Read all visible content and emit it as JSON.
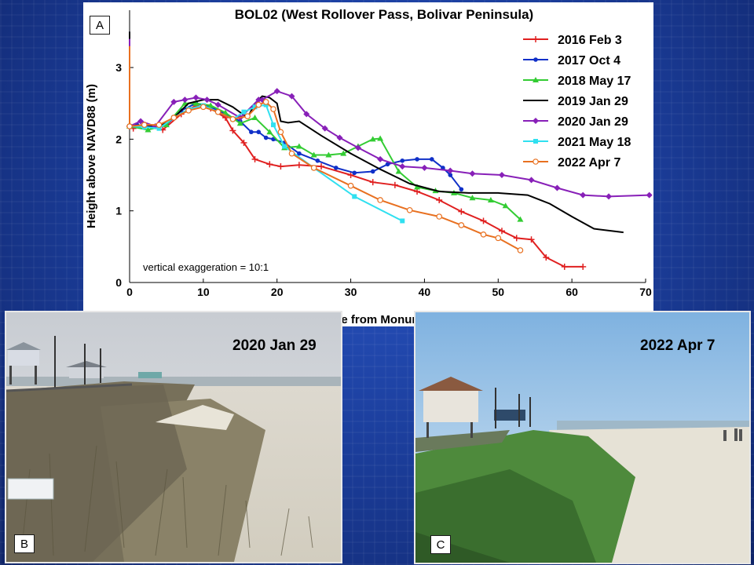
{
  "chart_data": {
    "type": "line",
    "title": "BOL02 (West Rollover Pass, Bolivar Peninsula)",
    "xlabel": "Distance from Monument (m)",
    "ylabel": "Height above NAVD88 (m)",
    "xlim": [
      0,
      70
    ],
    "ylim": [
      0,
      3.8
    ],
    "xticks": [
      0,
      10,
      20,
      30,
      40,
      50,
      60,
      70
    ],
    "yticks": [
      0,
      1,
      2,
      3
    ],
    "grid": false,
    "legend_position": "top-right",
    "annotation": "vertical exaggeration = 10:1",
    "series": [
      {
        "name": "2016 Feb 3",
        "color": "#e02020",
        "marker": "plus",
        "x": [
          0,
          0,
          0.5,
          2,
          4.5,
          7,
          9,
          11,
          13,
          14,
          15.5,
          17,
          19,
          20.5,
          23,
          26,
          30,
          33,
          36,
          39,
          42,
          45,
          48,
          50.5,
          52.5,
          54.5,
          56.5,
          59,
          61.5
        ],
        "y": [
          3.45,
          2.18,
          2.15,
          2.2,
          2.13,
          2.35,
          2.47,
          2.43,
          2.3,
          2.12,
          1.95,
          1.72,
          1.65,
          1.62,
          1.64,
          1.62,
          1.5,
          1.4,
          1.36,
          1.27,
          1.15,
          0.99,
          0.86,
          0.72,
          0.62,
          0.6,
          0.35,
          0.22,
          0.22
        ]
      },
      {
        "name": "2017 Oct 4",
        "color": "#1030c8",
        "marker": "circle",
        "x": [
          0,
          0,
          1,
          3,
          5,
          7,
          9,
          11,
          13,
          15,
          16.5,
          17.5,
          18.5,
          19.5,
          21,
          23,
          25.5,
          28,
          30.5,
          33,
          35,
          37,
          39,
          41,
          42.5,
          43.5,
          45
        ],
        "y": [
          3.5,
          2.18,
          2.2,
          2.17,
          2.2,
          2.4,
          2.5,
          2.45,
          2.35,
          2.25,
          2.1,
          2.1,
          2.02,
          2.0,
          1.95,
          1.8,
          1.7,
          1.6,
          1.53,
          1.55,
          1.65,
          1.7,
          1.72,
          1.72,
          1.6,
          1.5,
          1.3
        ]
      },
      {
        "name": "2018 May 17",
        "color": "#33cc33",
        "marker": "triangle",
        "x": [
          0,
          0,
          2.5,
          5,
          7.5,
          9,
          11,
          13,
          15,
          17,
          19,
          21,
          23,
          25,
          27,
          29,
          31,
          33,
          34,
          36.5,
          39,
          41.5,
          44,
          46.5,
          49,
          51,
          53
        ],
        "y": [
          3.3,
          2.18,
          2.13,
          2.2,
          2.5,
          2.5,
          2.47,
          2.37,
          2.22,
          2.3,
          2.1,
          1.88,
          1.9,
          1.78,
          1.78,
          1.8,
          1.9,
          2.0,
          2.01,
          1.55,
          1.33,
          1.28,
          1.25,
          1.18,
          1.15,
          1.07,
          0.88
        ]
      },
      {
        "name": "2019 Jan 29",
        "color": "#000000",
        "marker": "none",
        "x": [
          0,
          0,
          2,
          4,
          6,
          8,
          10,
          12,
          14,
          16,
          17,
          18,
          19,
          20,
          20.5,
          21.5,
          23,
          26,
          30,
          34,
          38,
          42,
          46,
          50,
          54,
          57,
          60,
          63,
          67
        ],
        "y": [
          3.5,
          2.18,
          2.2,
          2.18,
          2.3,
          2.5,
          2.55,
          2.55,
          2.45,
          2.3,
          2.5,
          2.6,
          2.58,
          2.5,
          2.25,
          2.23,
          2.25,
          2.05,
          1.8,
          1.58,
          1.38,
          1.27,
          1.25,
          1.25,
          1.22,
          1.1,
          0.92,
          0.75,
          0.7
        ]
      },
      {
        "name": "2020 Jan 29",
        "color": "#8820b8",
        "marker": "diamond",
        "x": [
          0,
          0,
          1.5,
          3.5,
          6,
          7.5,
          9,
          10.5,
          12,
          15,
          17.5,
          18,
          20,
          22,
          24,
          26.5,
          28.5,
          31,
          34,
          37,
          40,
          43.5,
          46.5,
          50.5,
          54.5,
          58,
          61.5,
          65,
          70.5
        ],
        "y": [
          3.4,
          2.18,
          2.25,
          2.18,
          2.52,
          2.55,
          2.58,
          2.55,
          2.48,
          2.3,
          2.55,
          2.55,
          2.67,
          2.6,
          2.35,
          2.15,
          2.02,
          1.88,
          1.72,
          1.62,
          1.6,
          1.56,
          1.52,
          1.5,
          1.43,
          1.32,
          1.22,
          1.2,
          1.22
        ]
      },
      {
        "name": "2021 May 18",
        "color": "#30e0f0",
        "marker": "square",
        "x": [
          0,
          0,
          2,
          4,
          6,
          8,
          10,
          12,
          14,
          15.5,
          17,
          18.5,
          19.5,
          21,
          25,
          30.5,
          37
        ],
        "y": [
          3.2,
          2.18,
          2.17,
          2.15,
          2.3,
          2.42,
          2.47,
          2.38,
          2.28,
          2.38,
          2.45,
          2.48,
          2.2,
          1.9,
          1.6,
          1.2,
          0.86
        ]
      },
      {
        "name": "2022 Apr 7",
        "color": "#e87020",
        "marker": "open-circle",
        "x": [
          0,
          0,
          2,
          4,
          6,
          8,
          10,
          12,
          14,
          16,
          17.5,
          18.5,
          19.5,
          20.5,
          22,
          25,
          30,
          34,
          38,
          42,
          45,
          48,
          50,
          53
        ],
        "y": [
          3.3,
          2.18,
          2.2,
          2.2,
          2.3,
          2.4,
          2.45,
          2.38,
          2.28,
          2.32,
          2.48,
          2.52,
          2.42,
          2.1,
          1.8,
          1.6,
          1.35,
          1.15,
          1.01,
          0.92,
          0.8,
          0.67,
          0.62,
          0.45
        ]
      }
    ]
  },
  "chart_panel_label": "A",
  "photos": [
    {
      "label": "B",
      "date": "2020 Jan 29"
    },
    {
      "label": "C",
      "date": "2022 Apr 7"
    }
  ]
}
